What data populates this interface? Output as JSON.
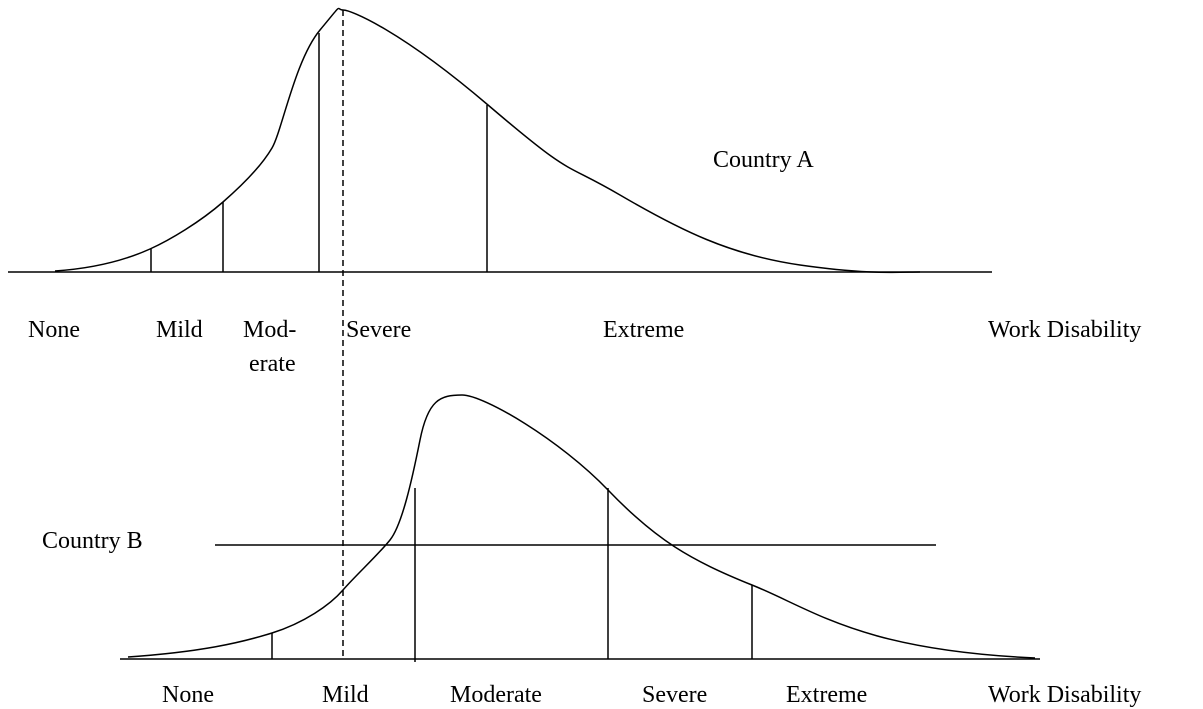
{
  "country_a": {
    "label": "Country A",
    "axis_labels": [
      "None",
      "Mild",
      "Mod-",
      "erate",
      "Severe",
      "Extreme"
    ],
    "axis_title": "Work Disability"
  },
  "country_b": {
    "label": "Country B",
    "axis_labels": [
      "None",
      "Mild",
      "Moderate",
      "Severe",
      "Extreme"
    ],
    "axis_title": "Work Disability"
  }
}
